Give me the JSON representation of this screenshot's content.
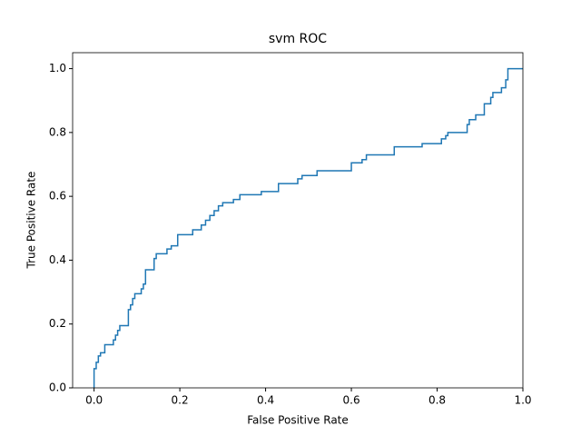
{
  "chart_data": {
    "type": "line",
    "title": "svm ROC",
    "x_label": "False Positive Rate",
    "y_label": "True Positive Rate",
    "xlim": [
      -0.05,
      1.0
    ],
    "ylim": [
      0,
      1.05
    ],
    "xticks": [
      {
        "value": 0,
        "label": "0.0"
      },
      0.2,
      0.4,
      0.6,
      0.8,
      {
        "value": 1,
        "label": "1.0"
      }
    ],
    "yticks": [
      {
        "value": 0,
        "label": "0.0"
      },
      0.2,
      0.4,
      0.6,
      0.8,
      {
        "value": 1,
        "label": "1.0"
      }
    ],
    "x": [
      0,
      0,
      0.005,
      0.005,
      0.01,
      0.01,
      0.015,
      0.015,
      0.025,
      0.025,
      0.045,
      0.045,
      0.05,
      0.05,
      0.055,
      0.055,
      0.06,
      0.06,
      0.08,
      0.08,
      0.085,
      0.085,
      0.09,
      0.09,
      0.095,
      0.095,
      0.11,
      0.11,
      0.115,
      0.115,
      0.12,
      0.12,
      0.14,
      0.14,
      0.145,
      0.145,
      0.17,
      0.17,
      0.18,
      0.18,
      0.195,
      0.195,
      0.23,
      0.23,
      0.25,
      0.25,
      0.26,
      0.26,
      0.27,
      0.27,
      0.28,
      0.28,
      0.29,
      0.29,
      0.3,
      0.3,
      0.325,
      0.325,
      0.34,
      0.34,
      0.39,
      0.39,
      0.43,
      0.43,
      0.475,
      0.475,
      0.485,
      0.485,
      0.52,
      0.52,
      0.6,
      0.6,
      0.625,
      0.625,
      0.635,
      0.635,
      0.7,
      0.7,
      0.765,
      0.765,
      0.81,
      0.81,
      0.82,
      0.82,
      0.825,
      0.825,
      0.87,
      0.87,
      0.875,
      0.875,
      0.89,
      0.89,
      0.91,
      0.91,
      0.925,
      0.925,
      0.93,
      0.93,
      0.95,
      0.95,
      0.96,
      0.96,
      0.965,
      0.965,
      1.0
    ],
    "series": [
      {
        "color": "#1f77b4",
        "values": [
          0,
          0.06,
          0.06,
          0.08,
          0.08,
          0.1,
          0.1,
          0.11,
          0.11,
          0.135,
          0.135,
          0.15,
          0.15,
          0.165,
          0.165,
          0.18,
          0.18,
          0.195,
          0.195,
          0.245,
          0.245,
          0.26,
          0.26,
          0.28,
          0.28,
          0.295,
          0.295,
          0.31,
          0.31,
          0.325,
          0.325,
          0.37,
          0.37,
          0.405,
          0.405,
          0.42,
          0.42,
          0.435,
          0.435,
          0.445,
          0.445,
          0.48,
          0.48,
          0.495,
          0.495,
          0.51,
          0.51,
          0.525,
          0.525,
          0.54,
          0.54,
          0.555,
          0.555,
          0.57,
          0.57,
          0.58,
          0.58,
          0.59,
          0.59,
          0.605,
          0.605,
          0.615,
          0.615,
          0.64,
          0.64,
          0.655,
          0.655,
          0.665,
          0.665,
          0.68,
          0.68,
          0.705,
          0.705,
          0.715,
          0.715,
          0.73,
          0.73,
          0.755,
          0.755,
          0.765,
          0.765,
          0.78,
          0.78,
          0.79,
          0.79,
          0.8,
          0.8,
          0.825,
          0.825,
          0.84,
          0.84,
          0.855,
          0.855,
          0.89,
          0.89,
          0.91,
          0.91,
          0.925,
          0.925,
          0.94,
          0.94,
          0.965,
          0.965,
          1.0,
          1.0
        ]
      }
    ]
  }
}
